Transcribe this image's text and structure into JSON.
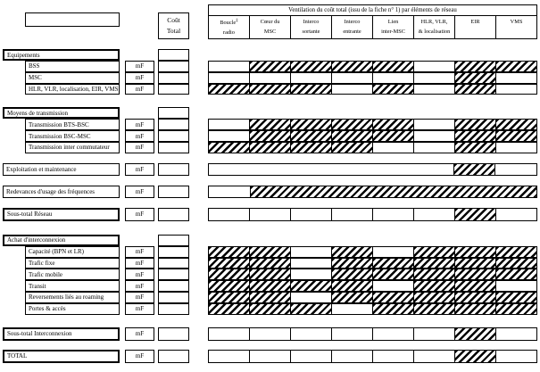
{
  "colors": {
    "ink": "#000000",
    "paper": "#ffffff"
  },
  "cout_total": {
    "line1": "Coût",
    "line2": "Total"
  },
  "unit_label": "mF",
  "grid": {
    "title": "Ventilation du coût total (issu de la fiche n° 1) par éléments de réseau",
    "columns": [
      {
        "l1": "Boucle",
        "l2": "radio",
        "sup": "‡"
      },
      {
        "l1": "Cœur du",
        "l2": "MSC"
      },
      {
        "l1": "Interco",
        "l2": "sortante"
      },
      {
        "l1": "Interco",
        "l2": "entrante"
      },
      {
        "l1": "Lien",
        "l2": "inter-MSC"
      },
      {
        "l1": "HLR, VLR,",
        "l2": "& localisation"
      },
      {
        "l1": "EIR",
        "l2": ""
      },
      {
        "l1": "VMS",
        "l2": ""
      }
    ]
  },
  "rows": [
    {
      "kind": "section",
      "label": "Equipements"
    },
    {
      "kind": "item",
      "label": "BSS",
      "cells": "WHHHHWHH"
    },
    {
      "kind": "item",
      "label": "MSC",
      "cells": "WWWWWWHW"
    },
    {
      "kind": "item",
      "label": "HLR, VLR, localisation, EIR, VMS",
      "cells": "HHHWHWHW"
    },
    {
      "kind": "section",
      "label": "Moyens de transmission",
      "gap": 14
    },
    {
      "kind": "item",
      "label": "Transmission BTS-BSC",
      "cells": "WHHHHWHH"
    },
    {
      "kind": "item",
      "label": "Transmission BSC-MSC",
      "cells": "WHHHHWHH"
    },
    {
      "kind": "item",
      "label": "Transmission inter commutateur",
      "cells": "HHHHWWHW"
    },
    {
      "kind": "full",
      "label": "Exploitation et maintenance",
      "gap": 11,
      "cells": [
        [
          6,
          "W"
        ],
        [
          1,
          "H"
        ],
        [
          1,
          "W"
        ]
      ]
    },
    {
      "kind": "full",
      "label": "Redevances d'usage des fréquences",
      "gap": 11,
      "cells": [
        [
          1,
          "W"
        ],
        [
          7,
          "H"
        ]
      ]
    },
    {
      "kind": "full",
      "bold": true,
      "label": "Sous-total Réseau",
      "gap": 11,
      "cells": "WWWWWWHW"
    },
    {
      "kind": "section",
      "label": "Achat d'interconnexion",
      "gap": 15
    },
    {
      "kind": "item",
      "label": "Capacité (BPN et LR)",
      "cells": "HHWHWHHH"
    },
    {
      "kind": "item",
      "label": "Trafic fixe",
      "cells": "HHWHHHHH"
    },
    {
      "kind": "item",
      "label": "Trafic mobile",
      "cells": "HHWHHHHH"
    },
    {
      "kind": "item",
      "label": "Transit",
      "cells": "HHHHWHHW"
    },
    {
      "kind": "item",
      "label": "Reversements liés au roaming",
      "cells": "HHWHHHHH"
    },
    {
      "kind": "item",
      "label": "Portes & accès",
      "cells": "HHHWHHHH"
    },
    {
      "kind": "full",
      "bold": true,
      "label": "Sous-total Interconnexion",
      "gap": 14,
      "cells": "WWWWWWHW"
    },
    {
      "kind": "full",
      "bold": true,
      "label": "TOTAL",
      "gap": 10,
      "cells": "WWWWWWHW"
    }
  ]
}
